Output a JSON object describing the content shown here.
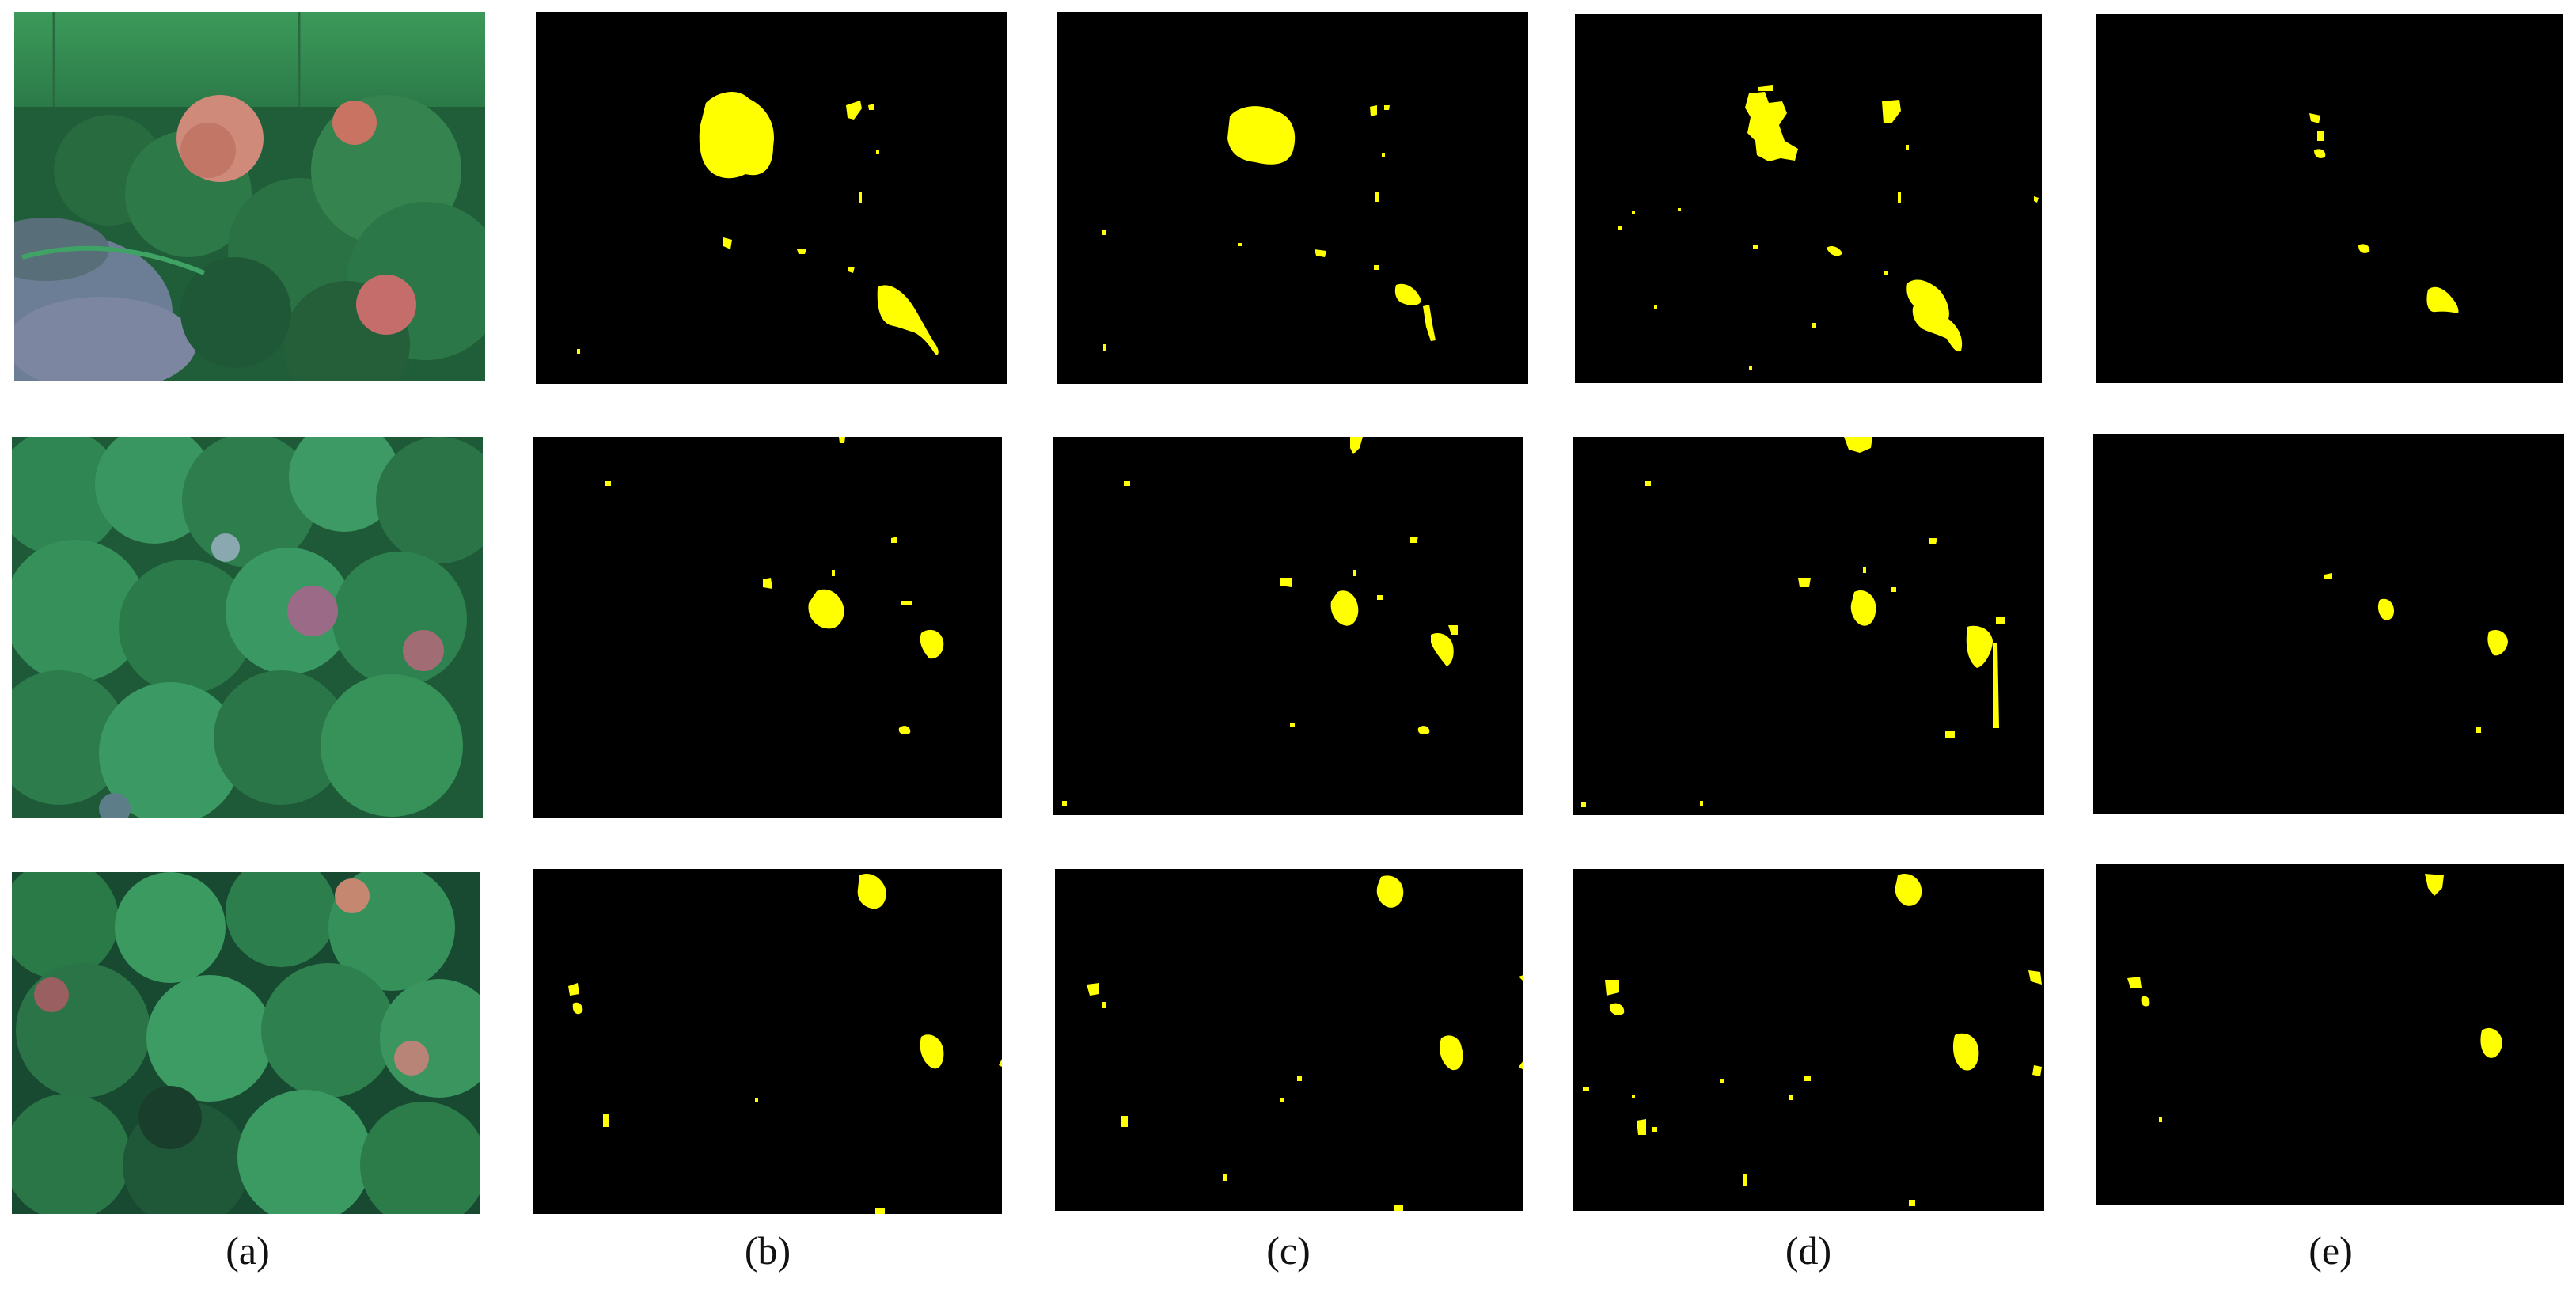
{
  "captions": [
    "(a)",
    "(b)",
    "(c)",
    "(d)",
    "(e)"
  ],
  "colors": {
    "mask_background": "#000000",
    "mask_foreground": "#ffff00",
    "canopy_green": "#2f8a55",
    "canopy_dark": "#14402a",
    "diseased_red": "#b0604f",
    "sky_green": "#3a9a55"
  }
}
